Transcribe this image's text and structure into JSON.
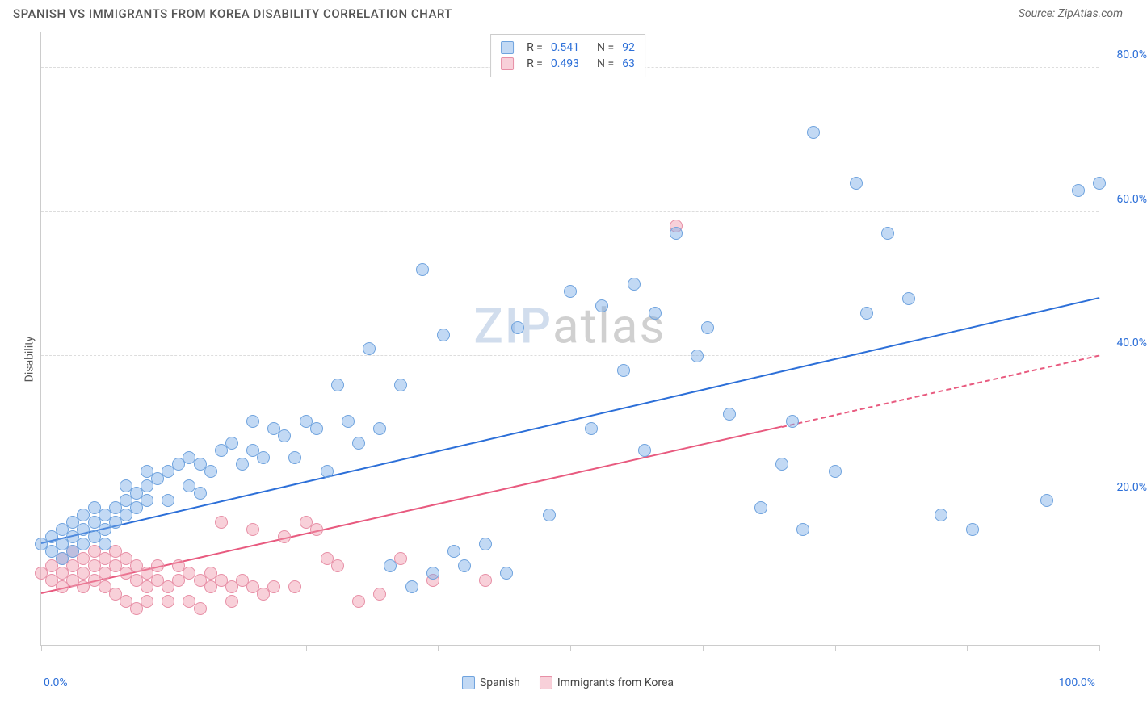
{
  "header": {
    "title": "SPANISH VS IMMIGRANTS FROM KOREA DISABILITY CORRELATION CHART",
    "source_prefix": "Source: ",
    "source_name": "ZipAtlas.com"
  },
  "watermark": {
    "zip": "ZIP",
    "atlas": "atlas"
  },
  "chart": {
    "type": "scatter",
    "ylabel": "Disability",
    "xlim": [
      0,
      100
    ],
    "ylim": [
      0,
      85
    ],
    "xtick_positions": [
      0,
      12.5,
      25,
      37.5,
      50,
      62.5,
      75,
      87.5,
      100
    ],
    "xtick_labels": {
      "min": "0.0%",
      "max": "100.0%"
    },
    "ytick_positions": [
      20,
      40,
      60,
      80
    ],
    "ytick_labels": [
      "20.0%",
      "40.0%",
      "60.0%",
      "80.0%"
    ],
    "grid_color": "#dddddd",
    "axis_color": "#cccccc",
    "background_color": "#ffffff",
    "label_color": "#2c6fd8",
    "marker_radius": 8,
    "series": [
      {
        "name": "Spanish",
        "fill": "rgba(120,170,230,0.45)",
        "stroke": "#6fa3de",
        "line_color": "#2c6fd8",
        "r_value": "0.541",
        "n_value": "92",
        "trend": {
          "x1": 0,
          "y1": 14,
          "x2": 100,
          "y2": 48,
          "dash_after_x": 100
        },
        "points": [
          [
            0,
            14
          ],
          [
            1,
            13
          ],
          [
            1,
            15
          ],
          [
            2,
            14
          ],
          [
            2,
            16
          ],
          [
            2,
            12
          ],
          [
            3,
            15
          ],
          [
            3,
            17
          ],
          [
            3,
            13
          ],
          [
            4,
            16
          ],
          [
            4,
            14
          ],
          [
            4,
            18
          ],
          [
            5,
            17
          ],
          [
            5,
            15
          ],
          [
            5,
            19
          ],
          [
            6,
            18
          ],
          [
            6,
            16
          ],
          [
            6,
            14
          ],
          [
            7,
            19
          ],
          [
            7,
            17
          ],
          [
            8,
            20
          ],
          [
            8,
            18
          ],
          [
            8,
            22
          ],
          [
            9,
            21
          ],
          [
            9,
            19
          ],
          [
            10,
            22
          ],
          [
            10,
            20
          ],
          [
            10,
            24
          ],
          [
            11,
            23
          ],
          [
            12,
            24
          ],
          [
            12,
            20
          ],
          [
            13,
            25
          ],
          [
            14,
            26
          ],
          [
            14,
            22
          ],
          [
            15,
            21
          ],
          [
            15,
            25
          ],
          [
            16,
            24
          ],
          [
            17,
            27
          ],
          [
            18,
            28
          ],
          [
            19,
            25
          ],
          [
            20,
            31
          ],
          [
            20,
            27
          ],
          [
            21,
            26
          ],
          [
            22,
            30
          ],
          [
            23,
            29
          ],
          [
            24,
            26
          ],
          [
            25,
            31
          ],
          [
            26,
            30
          ],
          [
            27,
            24
          ],
          [
            28,
            36
          ],
          [
            29,
            31
          ],
          [
            30,
            28
          ],
          [
            31,
            41
          ],
          [
            32,
            30
          ],
          [
            33,
            11
          ],
          [
            34,
            36
          ],
          [
            35,
            8
          ],
          [
            36,
            52
          ],
          [
            37,
            10
          ],
          [
            38,
            43
          ],
          [
            39,
            13
          ],
          [
            40,
            11
          ],
          [
            42,
            14
          ],
          [
            44,
            10
          ],
          [
            45,
            44
          ],
          [
            48,
            18
          ],
          [
            50,
            49
          ],
          [
            52,
            30
          ],
          [
            53,
            47
          ],
          [
            55,
            38
          ],
          [
            56,
            50
          ],
          [
            57,
            27
          ],
          [
            58,
            46
          ],
          [
            60,
            57
          ],
          [
            62,
            40
          ],
          [
            63,
            44
          ],
          [
            65,
            32
          ],
          [
            68,
            19
          ],
          [
            70,
            25
          ],
          [
            71,
            31
          ],
          [
            72,
            16
          ],
          [
            73,
            71
          ],
          [
            75,
            24
          ],
          [
            77,
            64
          ],
          [
            78,
            46
          ],
          [
            80,
            57
          ],
          [
            82,
            48
          ],
          [
            85,
            18
          ],
          [
            88,
            16
          ],
          [
            95,
            20
          ],
          [
            98,
            63
          ],
          [
            100,
            64
          ]
        ]
      },
      {
        "name": "Immigrants from Korea",
        "fill": "rgba(240,150,170,0.45)",
        "stroke": "#e78fa6",
        "line_color": "#e85a7f",
        "r_value": "0.493",
        "n_value": "63",
        "trend": {
          "x1": 0,
          "y1": 7,
          "x2": 100,
          "y2": 40,
          "dash_after_x": 70
        },
        "points": [
          [
            0,
            10
          ],
          [
            1,
            9
          ],
          [
            1,
            11
          ],
          [
            2,
            10
          ],
          [
            2,
            12
          ],
          [
            2,
            8
          ],
          [
            3,
            11
          ],
          [
            3,
            9
          ],
          [
            3,
            13
          ],
          [
            4,
            12
          ],
          [
            4,
            10
          ],
          [
            4,
            8
          ],
          [
            5,
            11
          ],
          [
            5,
            9
          ],
          [
            5,
            13
          ],
          [
            6,
            12
          ],
          [
            6,
            10
          ],
          [
            6,
            8
          ],
          [
            7,
            11
          ],
          [
            7,
            7
          ],
          [
            7,
            13
          ],
          [
            8,
            12
          ],
          [
            8,
            10
          ],
          [
            8,
            6
          ],
          [
            9,
            11
          ],
          [
            9,
            9
          ],
          [
            9,
            5
          ],
          [
            10,
            10
          ],
          [
            10,
            8
          ],
          [
            10,
            6
          ],
          [
            11,
            9
          ],
          [
            11,
            11
          ],
          [
            12,
            8
          ],
          [
            12,
            6
          ],
          [
            13,
            9
          ],
          [
            13,
            11
          ],
          [
            14,
            10
          ],
          [
            14,
            6
          ],
          [
            15,
            9
          ],
          [
            15,
            5
          ],
          [
            16,
            8
          ],
          [
            16,
            10
          ],
          [
            17,
            9
          ],
          [
            17,
            17
          ],
          [
            18,
            8
          ],
          [
            18,
            6
          ],
          [
            19,
            9
          ],
          [
            20,
            8
          ],
          [
            20,
            16
          ],
          [
            21,
            7
          ],
          [
            22,
            8
          ],
          [
            23,
            15
          ],
          [
            24,
            8
          ],
          [
            25,
            17
          ],
          [
            26,
            16
          ],
          [
            27,
            12
          ],
          [
            28,
            11
          ],
          [
            30,
            6
          ],
          [
            32,
            7
          ],
          [
            34,
            12
          ],
          [
            37,
            9
          ],
          [
            42,
            9
          ],
          [
            60,
            58
          ]
        ]
      }
    ]
  },
  "stat_box": {
    "r_label": "R =",
    "n_label": "N ="
  },
  "legend": {
    "series1_label": "Spanish",
    "series2_label": "Immigrants from Korea"
  }
}
